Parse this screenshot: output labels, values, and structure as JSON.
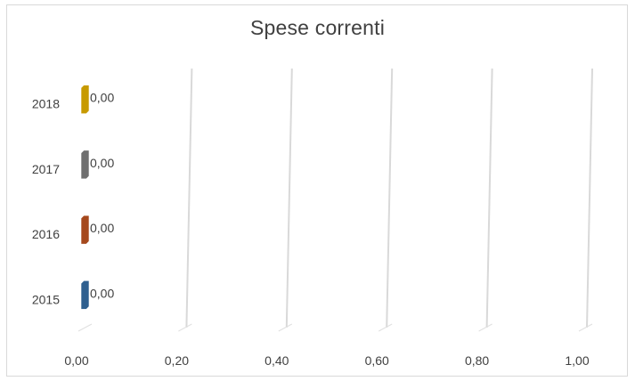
{
  "chart_data": {
    "type": "bar",
    "orientation": "horizontal",
    "title": "Spese correnti",
    "xlabel": "",
    "ylabel": "",
    "categories": [
      "2015",
      "2016",
      "2017",
      "2018"
    ],
    "values": [
      0.0,
      0.0,
      0.0,
      0.0
    ],
    "data_labels": [
      "0,00",
      "0,00",
      "0,00",
      "0,00"
    ],
    "bar_colors": [
      "#2e5f8f",
      "#a5481c",
      "#6f6f6f",
      "#c79a00"
    ],
    "xlim": [
      0,
      1
    ],
    "x_ticks": [
      0,
      0.2,
      0.4,
      0.6,
      0.8,
      1.0
    ],
    "x_tick_labels": [
      "0,00",
      "0,20",
      "0,40",
      "0,60",
      "0,80",
      "1,00"
    ],
    "grid": true,
    "legend": "none"
  },
  "colors": {
    "gridline": "#d9d9d9",
    "text": "#404040",
    "border": "#d9d9d9"
  }
}
